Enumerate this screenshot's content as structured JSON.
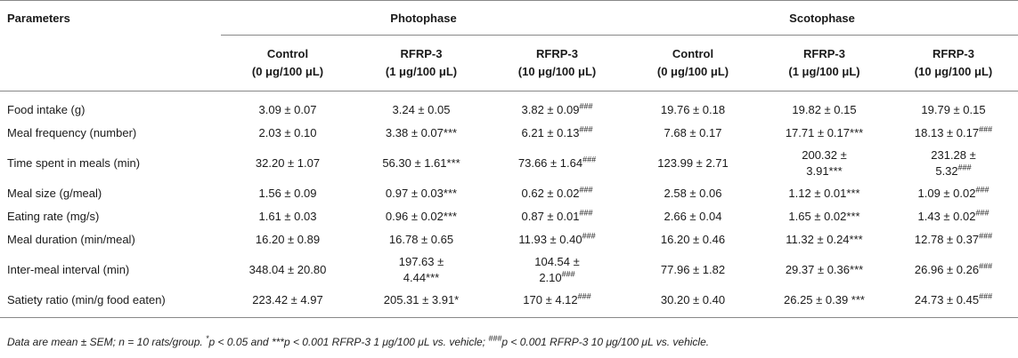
{
  "header": {
    "parameters": "Parameters",
    "photophase": "Photophase",
    "scotophase": "Scotophase",
    "cols": [
      {
        "line1": "Control",
        "line2": "(0 μg/100 μL)"
      },
      {
        "line1": "RFRP-3",
        "line2": "(1 μg/100 μL)"
      },
      {
        "line1": "RFRP-3",
        "line2": "(10 μg/100 μL)"
      },
      {
        "line1": "Control",
        "line2": "(0 μg/100 μL)"
      },
      {
        "line1": "RFRP-3",
        "line2": "(1 μg/100 μL)"
      },
      {
        "line1": "RFRP-3",
        "line2": "(10 μg/100 μL)"
      }
    ]
  },
  "rows": [
    {
      "label": "Food intake (g)",
      "cells": [
        {
          "v": "3.09 ± 0.07",
          "s": ""
        },
        {
          "v": "3.24 ± 0.05",
          "s": ""
        },
        {
          "v": "3.82 ± 0.09",
          "s": "###"
        },
        {
          "v": "19.76 ± 0.18",
          "s": ""
        },
        {
          "v": "19.82 ± 0.15",
          "s": ""
        },
        {
          "v": "19.79 ± 0.15",
          "s": ""
        }
      ]
    },
    {
      "label": "Meal frequency (number)",
      "cells": [
        {
          "v": "2.03 ± 0.10",
          "s": ""
        },
        {
          "v": "3.38 ± 0.07***",
          "s": ""
        },
        {
          "v": "6.21 ± 0.13",
          "s": "###"
        },
        {
          "v": "7.68 ± 0.17",
          "s": ""
        },
        {
          "v": "17.71 ± 0.17***",
          "s": ""
        },
        {
          "v": "18.13 ± 0.17",
          "s": "###"
        }
      ]
    },
    {
      "label": "Time spent in meals (min)",
      "cells": [
        {
          "v": "32.20 ± 1.07",
          "s": ""
        },
        {
          "v": "56.30 ± 1.61***",
          "s": ""
        },
        {
          "v": "73.66 ± 1.64",
          "s": "###"
        },
        {
          "v": "123.99 ± 2.71",
          "s": ""
        },
        {
          "v": "200.32 ±",
          "v2": "3.91***",
          "s": ""
        },
        {
          "v": "231.28 ±",
          "v2": "5.32",
          "s": "###"
        }
      ]
    },
    {
      "label": "Meal size (g/meal)",
      "cells": [
        {
          "v": "1.56 ± 0.09",
          "s": ""
        },
        {
          "v": "0.97 ± 0.03***",
          "s": ""
        },
        {
          "v": "0.62 ± 0.02",
          "s": "###"
        },
        {
          "v": "2.58 ± 0.06",
          "s": ""
        },
        {
          "v": "1.12 ± 0.01***",
          "s": ""
        },
        {
          "v": "1.09 ± 0.02",
          "s": "###"
        }
      ]
    },
    {
      "label": "Eating rate (mg/s)",
      "cells": [
        {
          "v": "1.61 ± 0.03",
          "s": ""
        },
        {
          "v": "0.96 ± 0.02***",
          "s": ""
        },
        {
          "v": "0.87 ± 0.01",
          "s": "###"
        },
        {
          "v": "2.66 ± 0.04",
          "s": ""
        },
        {
          "v": "1.65 ± 0.02***",
          "s": ""
        },
        {
          "v": "1.43 ± 0.02",
          "s": "###"
        }
      ]
    },
    {
      "label": "Meal duration (min/meal)",
      "cells": [
        {
          "v": "16.20 ± 0.89",
          "s": ""
        },
        {
          "v": "16.78 ± 0.65",
          "s": ""
        },
        {
          "v": "11.93 ± 0.40",
          "s": "###"
        },
        {
          "v": "16.20 ± 0.46",
          "s": ""
        },
        {
          "v": "11.32 ± 0.24***",
          "s": ""
        },
        {
          "v": "12.78 ± 0.37",
          "s": "###"
        }
      ]
    },
    {
      "label": "Inter-meal interval (min)",
      "cells": [
        {
          "v": "348.04 ± 20.80",
          "s": ""
        },
        {
          "v": "197.63 ±",
          "v2": "4.44***",
          "s": ""
        },
        {
          "v": "104.54 ±",
          "v2": "2.10",
          "s": "###"
        },
        {
          "v": "77.96 ± 1.82",
          "s": ""
        },
        {
          "v": "29.37 ± 0.36***",
          "s": ""
        },
        {
          "v": "26.96 ± 0.26",
          "s": "###"
        }
      ]
    },
    {
      "label": "Satiety ratio (min/g food eaten)",
      "cells": [
        {
          "v": "223.42 ± 4.97",
          "s": ""
        },
        {
          "v": "205.31 ± 3.91*",
          "s": ""
        },
        {
          "v": "170 ± 4.12",
          "s": "###"
        },
        {
          "v": "30.20 ± 0.40",
          "s": ""
        },
        {
          "v": "26.25 ± 0.39 ***",
          "s": ""
        },
        {
          "v": "24.73 ± 0.45",
          "s": "###"
        }
      ]
    }
  ],
  "footnote": {
    "a": "Data are mean ± SEM; n = 10 rats/group. ",
    "sup_a": "*",
    "b": "p < 0.05 and ***p < 0.001 RFRP-3 1 μg/100 μL vs. vehicle; ",
    "sup_b": "###",
    "c": "p < 0.001 RFRP-3 10 μg/100 μL vs. vehicle."
  }
}
